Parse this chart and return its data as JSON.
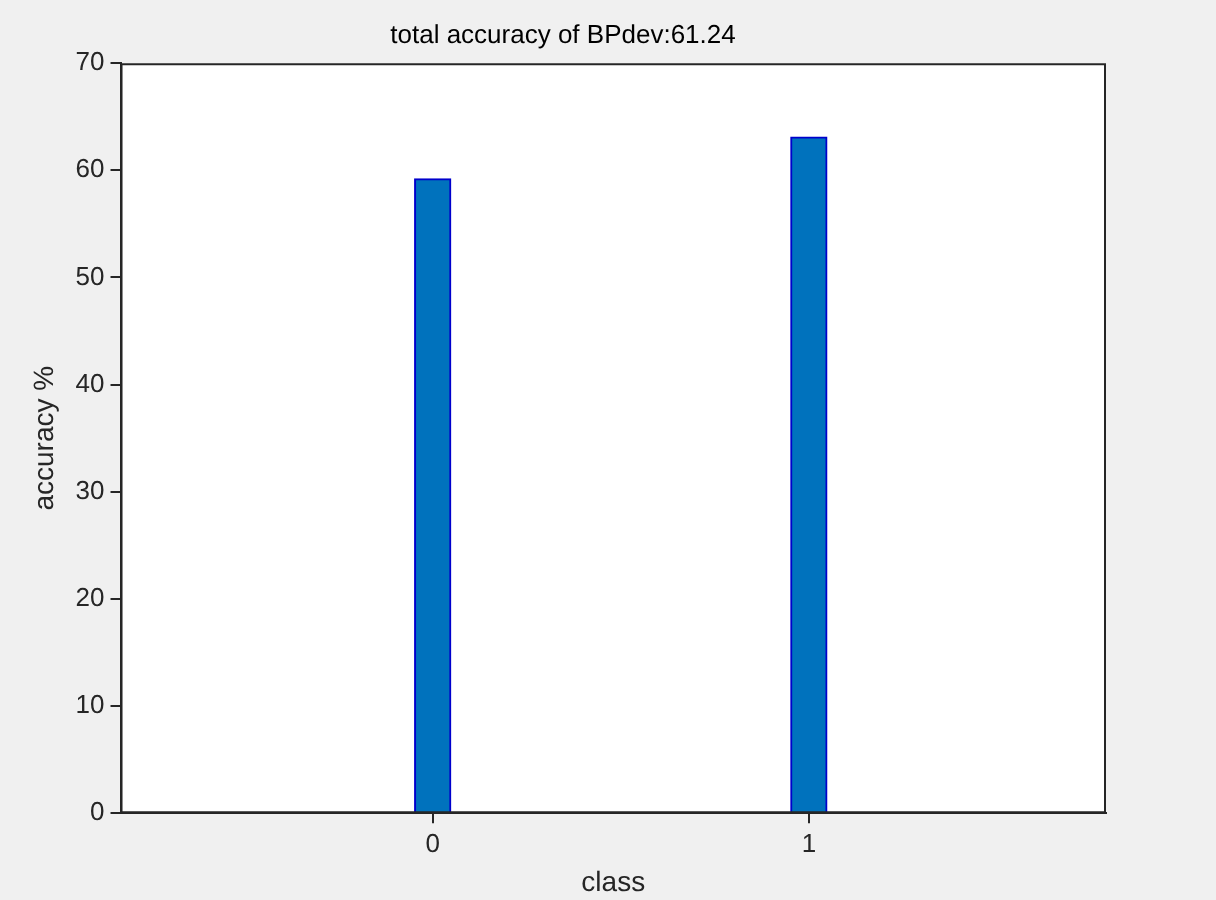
{
  "chart_data": {
    "type": "bar",
    "title": "total accuracy of BPdev:61.24",
    "xlabel": "class",
    "ylabel": "accuracy %",
    "x": [
      0,
      1
    ],
    "values": [
      59.2,
      63.1
    ],
    "color": "#0072bd",
    "xlim": [
      -0.83,
      1.79
    ],
    "xticks": [
      0,
      1
    ],
    "ylim": [
      0,
      70
    ],
    "yticks": [
      0,
      10,
      20,
      30,
      40,
      50,
      60,
      70
    ],
    "grid": false,
    "legend": false
  }
}
